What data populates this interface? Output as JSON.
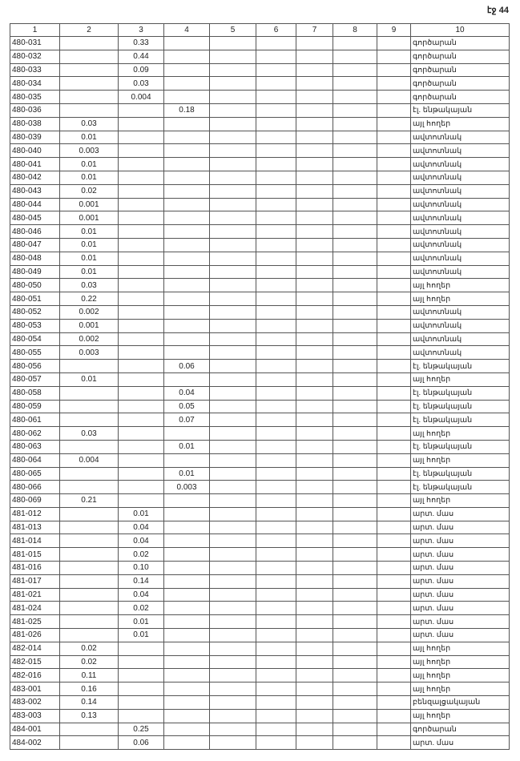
{
  "page_label": "էջ 44",
  "table": {
    "headers": [
      "1",
      "2",
      "3",
      "4",
      "5",
      "6",
      "7",
      "8",
      "9",
      "10"
    ],
    "rows": [
      [
        "480-031",
        "",
        "0.33",
        "",
        "",
        "",
        "",
        "",
        "",
        "գործարան"
      ],
      [
        "480-032",
        "",
        "0.44",
        "",
        "",
        "",
        "",
        "",
        "",
        "գործարան"
      ],
      [
        "480-033",
        "",
        "0.09",
        "",
        "",
        "",
        "",
        "",
        "",
        "գործարան"
      ],
      [
        "480-034",
        "",
        "0.03",
        "",
        "",
        "",
        "",
        "",
        "",
        "գործարան"
      ],
      [
        "480-035",
        "",
        "0.004",
        "",
        "",
        "",
        "",
        "",
        "",
        "գործարան"
      ],
      [
        "480-036",
        "",
        "",
        "0.18",
        "",
        "",
        "",
        "",
        "",
        "էլ. ենթակայան"
      ],
      [
        "480-038",
        "0.03",
        "",
        "",
        "",
        "",
        "",
        "",
        "",
        "այլ հողեր"
      ],
      [
        "480-039",
        "0.01",
        "",
        "",
        "",
        "",
        "",
        "",
        "",
        "ավտոտնակ"
      ],
      [
        "480-040",
        "0.003",
        "",
        "",
        "",
        "",
        "",
        "",
        "",
        "ավտոտնակ"
      ],
      [
        "480-041",
        "0.01",
        "",
        "",
        "",
        "",
        "",
        "",
        "",
        "ավտոտնակ"
      ],
      [
        "480-042",
        "0.01",
        "",
        "",
        "",
        "",
        "",
        "",
        "",
        "ավտոտնակ"
      ],
      [
        "480-043",
        "0.02",
        "",
        "",
        "",
        "",
        "",
        "",
        "",
        "ավտոտնակ"
      ],
      [
        "480-044",
        "0.001",
        "",
        "",
        "",
        "",
        "",
        "",
        "",
        "ավտոտնակ"
      ],
      [
        "480-045",
        "0.001",
        "",
        "",
        "",
        "",
        "",
        "",
        "",
        "ավտոտնակ"
      ],
      [
        "480-046",
        "0.01",
        "",
        "",
        "",
        "",
        "",
        "",
        "",
        "ավտոտնակ"
      ],
      [
        "480-047",
        "0.01",
        "",
        "",
        "",
        "",
        "",
        "",
        "",
        "ավտոտնակ"
      ],
      [
        "480-048",
        "0.01",
        "",
        "",
        "",
        "",
        "",
        "",
        "",
        "ավտոտնակ"
      ],
      [
        "480-049",
        "0.01",
        "",
        "",
        "",
        "",
        "",
        "",
        "",
        "ավտոտնակ"
      ],
      [
        "480-050",
        "0.03",
        "",
        "",
        "",
        "",
        "",
        "",
        "",
        "այլ հողեր"
      ],
      [
        "480-051",
        "0.22",
        "",
        "",
        "",
        "",
        "",
        "",
        "",
        "այլ հողեր"
      ],
      [
        "480-052",
        "0.002",
        "",
        "",
        "",
        "",
        "",
        "",
        "",
        "ավտոտնակ"
      ],
      [
        "480-053",
        "0.001",
        "",
        "",
        "",
        "",
        "",
        "",
        "",
        "ավտոտնակ"
      ],
      [
        "480-054",
        "0.002",
        "",
        "",
        "",
        "",
        "",
        "",
        "",
        "ավտոտնակ"
      ],
      [
        "480-055",
        "0.003",
        "",
        "",
        "",
        "",
        "",
        "",
        "",
        "ավտոտնակ"
      ],
      [
        "480-056",
        "",
        "",
        "0.06",
        "",
        "",
        "",
        "",
        "",
        "էլ. ենթակայան"
      ],
      [
        "480-057",
        "0.01",
        "",
        "",
        "",
        "",
        "",
        "",
        "",
        "այլ հողեր"
      ],
      [
        "480-058",
        "",
        "",
        "0.04",
        "",
        "",
        "",
        "",
        "",
        "էլ. ենթակայան"
      ],
      [
        "480-059",
        "",
        "",
        "0.05",
        "",
        "",
        "",
        "",
        "",
        "էլ. ենթակայան"
      ],
      [
        "480-061",
        "",
        "",
        "0.07",
        "",
        "",
        "",
        "",
        "",
        "էլ. ենթակայան"
      ],
      [
        "480-062",
        "0.03",
        "",
        "",
        "",
        "",
        "",
        "",
        "",
        "այլ հողեր"
      ],
      [
        "480-063",
        "",
        "",
        "0.01",
        "",
        "",
        "",
        "",
        "",
        "էլ. ենթակայան"
      ],
      [
        "480-064",
        "0.004",
        "",
        "",
        "",
        "",
        "",
        "",
        "",
        "այլ հողեր"
      ],
      [
        "480-065",
        "",
        "",
        "0.01",
        "",
        "",
        "",
        "",
        "",
        "էլ. ենթակայան"
      ],
      [
        "480-066",
        "",
        "",
        "0.003",
        "",
        "",
        "",
        "",
        "",
        "էլ. ենթակայան"
      ],
      [
        "480-069",
        "0.21",
        "",
        "",
        "",
        "",
        "",
        "",
        "",
        "այլ հողեր"
      ],
      [
        "481-012",
        "",
        "0.01",
        "",
        "",
        "",
        "",
        "",
        "",
        "արտ. մաս"
      ],
      [
        "481-013",
        "",
        "0.04",
        "",
        "",
        "",
        "",
        "",
        "",
        "արտ. մաս"
      ],
      [
        "481-014",
        "",
        "0.04",
        "",
        "",
        "",
        "",
        "",
        "",
        "արտ. մաս"
      ],
      [
        "481-015",
        "",
        "0.02",
        "",
        "",
        "",
        "",
        "",
        "",
        "արտ. մաս"
      ],
      [
        "481-016",
        "",
        "0.10",
        "",
        "",
        "",
        "",
        "",
        "",
        "արտ. մաս"
      ],
      [
        "481-017",
        "",
        "0.14",
        "",
        "",
        "",
        "",
        "",
        "",
        "արտ. մաս"
      ],
      [
        "481-021",
        "",
        "0.04",
        "",
        "",
        "",
        "",
        "",
        "",
        "արտ. մաս"
      ],
      [
        "481-024",
        "",
        "0.02",
        "",
        "",
        "",
        "",
        "",
        "",
        "արտ. մաս"
      ],
      [
        "481-025",
        "",
        "0.01",
        "",
        "",
        "",
        "",
        "",
        "",
        "արտ. մաս"
      ],
      [
        "481-026",
        "",
        "0.01",
        "",
        "",
        "",
        "",
        "",
        "",
        "արտ. մաս"
      ],
      [
        "482-014",
        "0.02",
        "",
        "",
        "",
        "",
        "",
        "",
        "",
        "այլ հողեր"
      ],
      [
        "482-015",
        "0.02",
        "",
        "",
        "",
        "",
        "",
        "",
        "",
        "այլ հողեր"
      ],
      [
        "482-016",
        "0.11",
        "",
        "",
        "",
        "",
        "",
        "",
        "",
        "այլ հողեր"
      ],
      [
        "483-001",
        "0.16",
        "",
        "",
        "",
        "",
        "",
        "",
        "",
        "այլ հողեր"
      ],
      [
        "483-002",
        "0.14",
        "",
        "",
        "",
        "",
        "",
        "",
        "",
        "բենզալցակայան"
      ],
      [
        "483-003",
        "0.13",
        "",
        "",
        "",
        "",
        "",
        "",
        "",
        "այլ հողեր"
      ],
      [
        "484-001",
        "",
        "0.25",
        "",
        "",
        "",
        "",
        "",
        "",
        "գործարան"
      ],
      [
        "484-002",
        "",
        "0.06",
        "",
        "",
        "",
        "",
        "",
        "",
        "արտ. մաս"
      ]
    ]
  }
}
